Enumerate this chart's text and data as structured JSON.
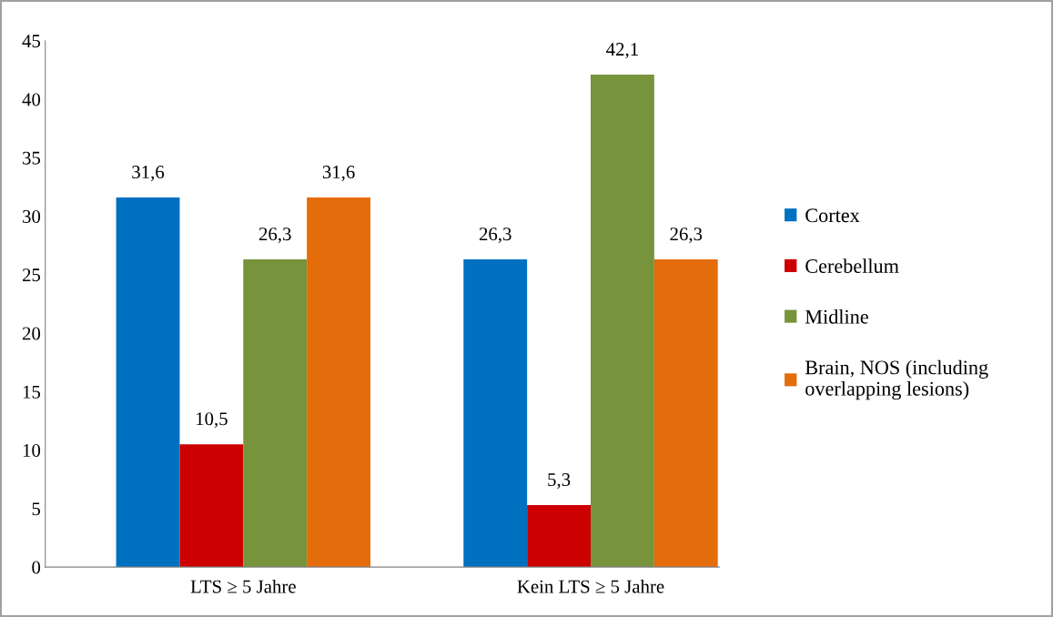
{
  "chart_data": {
    "type": "bar",
    "categories": [
      "LTS ≥ 5 Jahre",
      "Kein LTS ≥ 5 Jahre"
    ],
    "series": [
      {
        "name": "Cortex",
        "color": "#0070c0",
        "values": [
          31.6,
          26.3
        ],
        "value_labels": [
          "31,6",
          "26,3"
        ]
      },
      {
        "name": "Cerebellum",
        "color": "#cc0000",
        "values": [
          10.5,
          5.3
        ],
        "value_labels": [
          "10,5",
          "5,3"
        ]
      },
      {
        "name": "Midline",
        "color": "#77933c",
        "values": [
          26.3,
          42.1
        ],
        "value_labels": [
          "26,3",
          "42,1"
        ]
      },
      {
        "name": "Brain, NOS (including\noverlapping lesions)",
        "color": "#e46c0a",
        "values": [
          31.6,
          26.3
        ],
        "value_labels": [
          "31,6",
          "26,3"
        ]
      }
    ],
    "ylim": [
      0,
      45
    ],
    "yticks": [
      0,
      5,
      10,
      15,
      20,
      25,
      30,
      35,
      40,
      45
    ],
    "grid": false,
    "legend": "right"
  }
}
